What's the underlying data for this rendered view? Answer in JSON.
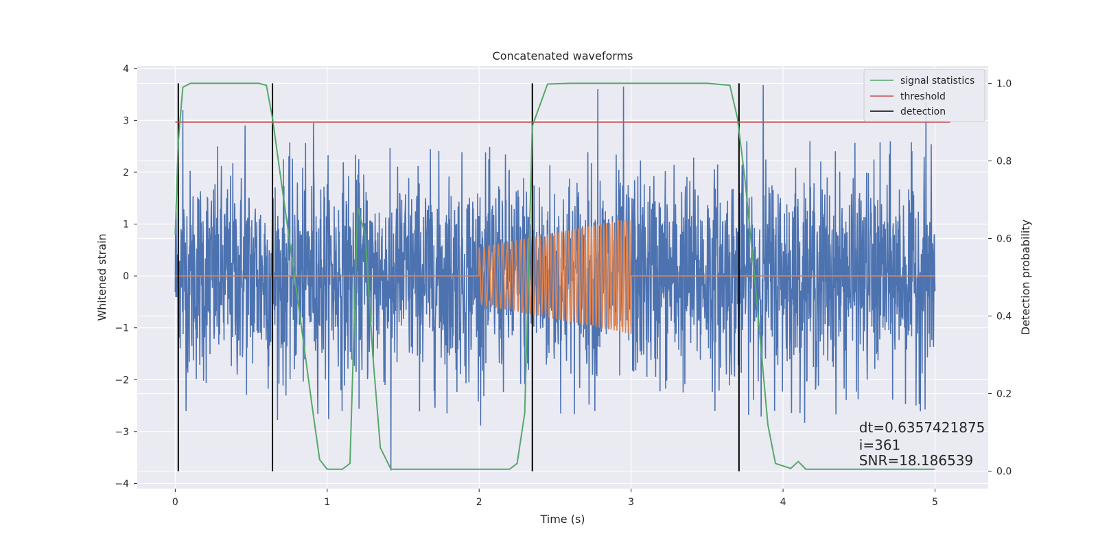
{
  "chart_data": {
    "type": "line",
    "title": "Concatenated waveforms",
    "xlabel": "Time (s)",
    "ylabel": "Whitened strain",
    "y2label": "Detection probability",
    "xlim": [
      -0.25,
      5.35
    ],
    "ylim": [
      -4.1,
      4.05
    ],
    "y2lim": [
      -0.045,
      1.045
    ],
    "xticks": [
      0,
      1,
      2,
      3,
      4,
      5
    ],
    "yticks": [
      -4,
      -3,
      -2,
      -1,
      0,
      1,
      2,
      3,
      4
    ],
    "y2ticks": [
      0.0,
      0.2,
      0.4,
      0.6,
      0.8,
      1.0
    ],
    "xtick_labels": [
      "0",
      "1",
      "2",
      "3",
      "4",
      "5"
    ],
    "ytick_labels": [
      "−4",
      "−3",
      "−2",
      "−1",
      "0",
      "1",
      "2",
      "3",
      "4"
    ],
    "y2tick_labels": [
      "0.0",
      "0.2",
      "0.4",
      "0.6",
      "0.8",
      "1.0"
    ],
    "grid": true,
    "legend_position": "top-right",
    "legend": [
      "signal statistics",
      "threshold",
      "detection"
    ],
    "series": [
      {
        "name": "",
        "kind": "whitened-noise",
        "axis": "left",
        "x_range": [
          0,
          5
        ],
        "typical_range": [
          -2.5,
          2.5
        ],
        "peaks": [
          {
            "x": 0.05,
            "y": 3.2
          },
          {
            "x": 0.46,
            "y": 2.9
          },
          {
            "x": 0.91,
            "y": 2.95
          },
          {
            "x": 1.42,
            "y": -3.75
          },
          {
            "x": 2.78,
            "y": 3.6
          },
          {
            "x": 2.95,
            "y": 3.65
          },
          {
            "x": 3.87,
            "y": 3.68
          },
          {
            "x": 4.94,
            "y": 3.35
          }
        ],
        "color": "#4c72b0"
      },
      {
        "name": "",
        "kind": "injected-chirp",
        "axis": "left",
        "color": "#dd8452",
        "x_range": [
          0,
          5
        ],
        "chirp_start": 2.0,
        "chirp_end": 3.0,
        "amplitude_start": 0.55,
        "amplitude_end": 1.12,
        "freq_start_hz": 30,
        "freq_end_hz": 55
      },
      {
        "name": "signal statistics",
        "axis": "right",
        "color": "#55a868",
        "x": [
          0.0,
          0.02,
          0.05,
          0.1,
          0.3,
          0.55,
          0.6,
          0.64,
          0.7,
          0.8,
          0.9,
          0.95,
          1.0,
          1.1,
          1.15,
          1.2,
          1.25,
          1.3,
          1.35,
          1.42,
          2.0,
          2.2,
          2.25,
          2.3,
          2.35,
          2.45,
          2.6,
          3.0,
          3.5,
          3.65,
          3.7,
          3.75,
          3.82,
          3.9,
          3.95,
          4.05,
          4.1,
          4.15,
          4.5,
          5.0
        ],
        "y": [
          0.61,
          0.85,
          0.99,
          1.0,
          1.0,
          1.0,
          0.995,
          0.91,
          0.74,
          0.46,
          0.17,
          0.03,
          0.005,
          0.005,
          0.02,
          0.68,
          0.61,
          0.3,
          0.06,
          0.005,
          0.005,
          0.005,
          0.02,
          0.15,
          0.89,
          0.998,
          1.0,
          1.0,
          1.0,
          0.995,
          0.91,
          0.75,
          0.47,
          0.12,
          0.02,
          0.007,
          0.025,
          0.005,
          0.005,
          0.005
        ]
      },
      {
        "name": "threshold",
        "axis": "right",
        "color": "#c44e52",
        "x": [
          0.0,
          5.1
        ],
        "y": [
          0.9,
          0.9
        ]
      }
    ],
    "detections": {
      "name": "detection",
      "color": "#000000",
      "x": [
        0.02,
        0.64,
        2.35,
        3.71
      ],
      "y_range": [
        0.0,
        1.0
      ]
    },
    "annotations": [
      {
        "text": "dt=0.6357421875",
        "x": 4.5,
        "y2": 0.1
      },
      {
        "text": " i=361",
        "x": 4.5,
        "y2": 0.055
      },
      {
        "text": "SNR=18.186539",
        "x": 4.5,
        "y2": 0.015
      }
    ]
  }
}
